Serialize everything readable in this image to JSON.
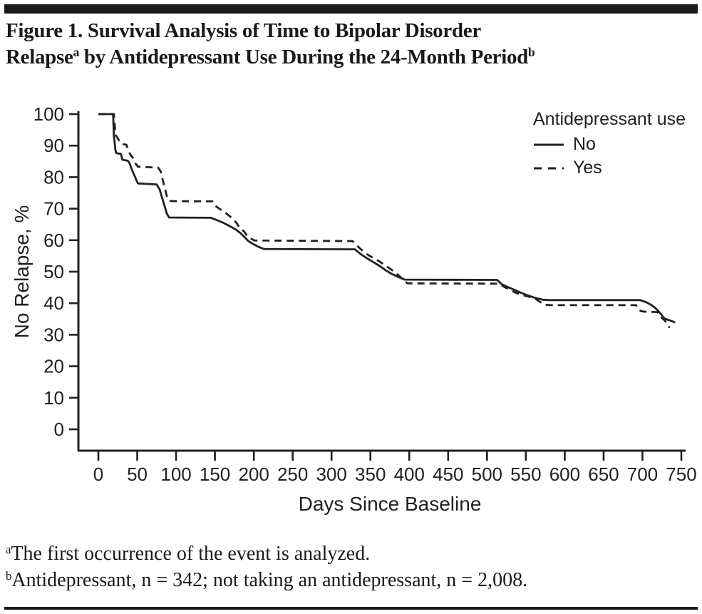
{
  "page": {
    "title": {
      "line1": "Figure 1. Survival Analysis of Time to Bipolar Disorder",
      "line2_main": "Relapse",
      "line2_sup_a": "a",
      "line2_rest": " by Antidepressant Use During the 24-Month Period",
      "line2_sup_b": "b"
    },
    "footnotes": [
      {
        "sup": "a",
        "text": "The first occurrence of the event is analyzed."
      },
      {
        "sup": "b",
        "text": "Antidepressant, n = 342; not taking an antidepressant, n = 2,008."
      }
    ],
    "colors": {
      "ink": "#231f20",
      "background": "#ffffff"
    }
  },
  "chart_data": {
    "type": "line",
    "subtype": "kaplan-meier-step",
    "title": "",
    "xlabel": "Days Since Baseline",
    "ylabel": "No Relapse, %",
    "xlim": [
      0,
      750
    ],
    "ylim": [
      0,
      100
    ],
    "xticks": [
      0,
      50,
      100,
      150,
      200,
      250,
      300,
      350,
      400,
      450,
      500,
      550,
      600,
      650,
      700,
      750
    ],
    "yticks": [
      0,
      10,
      20,
      30,
      40,
      50,
      60,
      70,
      80,
      90,
      100
    ],
    "grid": false,
    "legend": {
      "title": "Antidepressant use",
      "position": "top-right",
      "entries": [
        {
          "label": "No",
          "style": "solid"
        },
        {
          "label": "Yes",
          "style": "dashed"
        }
      ]
    },
    "series": [
      {
        "name": "No",
        "style": "solid",
        "points": [
          [
            0,
            100
          ],
          [
            19,
            100
          ],
          [
            20,
            93
          ],
          [
            21,
            91
          ],
          [
            22,
            88.5
          ],
          [
            23,
            87.6
          ],
          [
            29,
            87.4
          ],
          [
            31,
            85.5
          ],
          [
            38,
            85.2
          ],
          [
            40,
            84.5
          ],
          [
            43,
            82.5
          ],
          [
            45,
            81.3
          ],
          [
            47,
            80.2
          ],
          [
            49,
            79
          ],
          [
            51,
            78
          ],
          [
            75,
            77.7
          ],
          [
            79,
            76
          ],
          [
            82,
            73.5
          ],
          [
            85,
            71
          ],
          [
            88,
            68.5
          ],
          [
            91,
            67.2
          ],
          [
            145,
            67.1
          ],
          [
            152,
            66.4
          ],
          [
            160,
            65.6
          ],
          [
            168,
            64.6
          ],
          [
            176,
            63.5
          ],
          [
            183,
            62.2
          ],
          [
            188,
            61
          ],
          [
            193,
            59.7
          ],
          [
            199,
            58.8
          ],
          [
            206,
            57.9
          ],
          [
            213,
            57.2
          ],
          [
            330,
            57.1
          ],
          [
            338,
            55.5
          ],
          [
            346,
            54.2
          ],
          [
            354,
            53
          ],
          [
            362,
            51.8
          ],
          [
            370,
            50.4
          ],
          [
            378,
            49.2
          ],
          [
            386,
            48.3
          ],
          [
            394,
            47.5
          ],
          [
            513,
            47.4
          ],
          [
            519,
            46
          ],
          [
            526,
            45.2
          ],
          [
            534,
            44.4
          ],
          [
            543,
            43.4
          ],
          [
            552,
            42.5
          ],
          [
            562,
            41.7
          ],
          [
            572,
            41.1
          ],
          [
            580,
            41
          ],
          [
            697,
            41
          ],
          [
            705,
            40.3
          ],
          [
            711,
            39.5
          ],
          [
            716,
            38.6
          ],
          [
            720,
            37.6
          ],
          [
            724,
            36.5
          ],
          [
            728,
            35.2
          ],
          [
            733,
            34.7
          ],
          [
            738,
            34.3
          ],
          [
            742,
            33.9
          ]
        ]
      },
      {
        "name": "Yes",
        "style": "dashed",
        "points": [
          [
            0,
            100
          ],
          [
            20,
            100
          ],
          [
            22,
            93.5
          ],
          [
            27,
            91.5
          ],
          [
            30,
            90.5
          ],
          [
            36,
            90.3
          ],
          [
            39,
            88.2
          ],
          [
            42,
            86.8
          ],
          [
            45,
            86
          ],
          [
            48,
            84.2
          ],
          [
            51,
            83.3
          ],
          [
            77,
            83
          ],
          [
            80,
            81.9
          ],
          [
            82,
            80
          ],
          [
            85,
            77
          ],
          [
            88,
            74
          ],
          [
            91,
            72.5
          ],
          [
            95,
            72.4
          ],
          [
            147,
            72.3
          ],
          [
            152,
            70.6
          ],
          [
            158,
            69.6
          ],
          [
            165,
            68.4
          ],
          [
            172,
            67
          ],
          [
            178,
            65.4
          ],
          [
            183,
            63.5
          ],
          [
            187,
            62.9
          ],
          [
            192,
            61.2
          ],
          [
            197,
            60.4
          ],
          [
            201,
            59.9
          ],
          [
            327,
            59.7
          ],
          [
            336,
            57.5
          ],
          [
            344,
            55.8
          ],
          [
            352,
            54.6
          ],
          [
            360,
            53.5
          ],
          [
            368,
            52.2
          ],
          [
            375,
            51
          ],
          [
            382,
            49.8
          ],
          [
            389,
            48.2
          ],
          [
            393,
            47.2
          ],
          [
            398,
            46.3
          ],
          [
            516,
            46.2
          ],
          [
            522,
            45.2
          ],
          [
            529,
            44.3
          ],
          [
            537,
            43.3
          ],
          [
            546,
            42.6
          ],
          [
            555,
            42
          ],
          [
            563,
            41.3
          ],
          [
            569,
            40.3
          ],
          [
            574,
            39.6
          ],
          [
            580,
            39.4
          ],
          [
            692,
            39.4
          ],
          [
            694,
            38.2
          ],
          [
            698,
            37.5
          ],
          [
            703,
            37.3
          ],
          [
            719,
            37.2
          ],
          [
            722,
            36.2
          ],
          [
            726,
            35.1
          ],
          [
            729,
            34.5
          ],
          [
            732,
            33.2
          ],
          [
            735,
            32.2
          ]
        ]
      }
    ]
  }
}
